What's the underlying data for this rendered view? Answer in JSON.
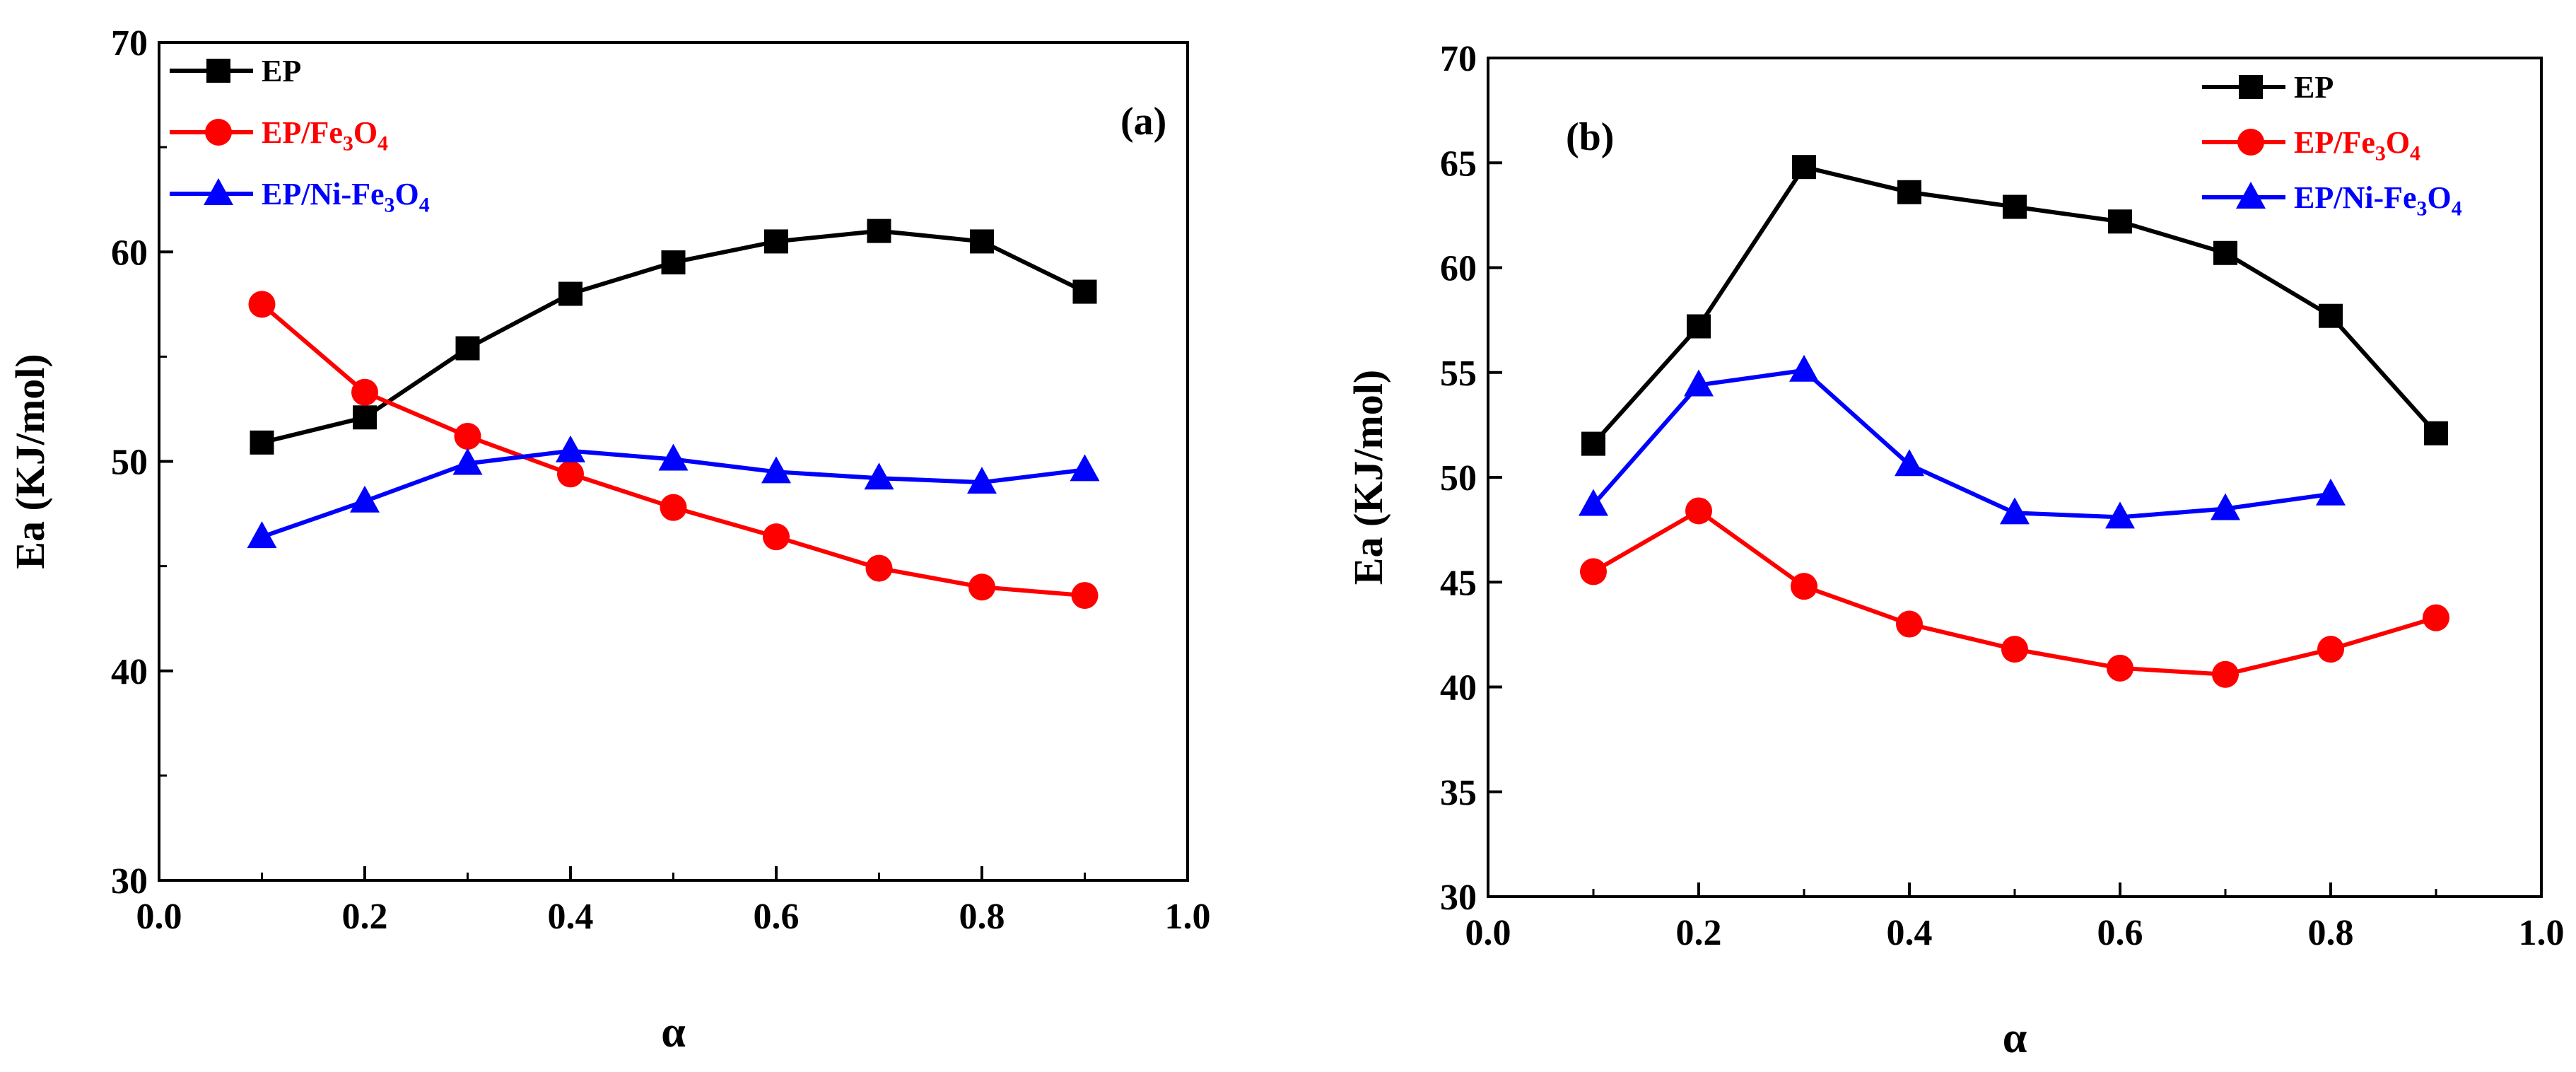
{
  "chart_data": [
    {
      "type": "line",
      "panel_label": "(a)",
      "title": "",
      "xlabel": "α",
      "ylabel": "Ea (KJ/mol)",
      "xlim": [
        0.0,
        1.0
      ],
      "ylim": [
        30,
        70
      ],
      "x_ticks": [
        "0.0",
        "0.2",
        "0.4",
        "0.6",
        "0.8",
        "1.0"
      ],
      "y_ticks": [
        "30",
        "40",
        "50",
        "60",
        "70"
      ],
      "x_tick_values": [
        0.0,
        0.2,
        0.4,
        0.6,
        0.8,
        1.0
      ],
      "y_tick_values": [
        30,
        40,
        50,
        60,
        70
      ],
      "x_minor_step": 0.1,
      "y_minor_step": 5,
      "legend_position": "top-left",
      "series": [
        {
          "name": "EP",
          "name_parts": [
            "EP"
          ],
          "name_sub": [],
          "marker": "square",
          "color": "#000000",
          "x": [
            0.1,
            0.2,
            0.3,
            0.4,
            0.5,
            0.6,
            0.7,
            0.8,
            0.9
          ],
          "y": [
            50.9,
            52.1,
            55.4,
            58.0,
            59.5,
            60.5,
            61.0,
            60.5,
            58.1
          ]
        },
        {
          "name": "EP/Fe3O4",
          "name_parts": [
            "EP/Fe",
            "3",
            "O",
            "4"
          ],
          "name_sub": [
            1,
            3
          ],
          "marker": "circle",
          "color": "#ff0000",
          "x": [
            0.1,
            0.2,
            0.3,
            0.4,
            0.5,
            0.6,
            0.7,
            0.8,
            0.9
          ],
          "y": [
            57.5,
            53.3,
            51.2,
            49.4,
            47.8,
            46.4,
            44.9,
            44.0,
            43.6
          ]
        },
        {
          "name": "EP/Ni-Fe3O4",
          "name_parts": [
            "EP/Ni-Fe",
            "3",
            "O",
            "4"
          ],
          "name_sub": [
            1,
            3
          ],
          "marker": "triangle",
          "color": "#0000ff",
          "x": [
            0.1,
            0.2,
            0.3,
            0.4,
            0.5,
            0.6,
            0.7,
            0.8,
            0.9
          ],
          "y": [
            46.4,
            48.1,
            49.9,
            50.5,
            50.1,
            49.5,
            49.2,
            49.0,
            49.6
          ]
        }
      ]
    },
    {
      "type": "line",
      "panel_label": "(b)",
      "title": "",
      "xlabel": "α",
      "ylabel": "Ea (KJ/mol)",
      "xlim": [
        0.0,
        1.0
      ],
      "ylim": [
        30,
        70
      ],
      "x_ticks": [
        "0.0",
        "0.2",
        "0.4",
        "0.6",
        "0.8",
        "1.0"
      ],
      "y_ticks": [
        "30",
        "35",
        "40",
        "45",
        "50",
        "55",
        "60",
        "65",
        "70"
      ],
      "x_tick_values": [
        0.0,
        0.2,
        0.4,
        0.6,
        0.8,
        1.0
      ],
      "y_tick_values": [
        30,
        35,
        40,
        45,
        50,
        55,
        60,
        65,
        70
      ],
      "x_minor_step": 0.1,
      "y_minor_step": 0,
      "legend_position": "top-right",
      "series": [
        {
          "name": "EP",
          "name_parts": [
            "EP"
          ],
          "name_sub": [],
          "marker": "square",
          "color": "#000000",
          "x": [
            0.1,
            0.2,
            0.3,
            0.4,
            0.5,
            0.6,
            0.7,
            0.8,
            0.9
          ],
          "y": [
            51.6,
            57.2,
            64.8,
            63.6,
            62.9,
            62.2,
            60.7,
            57.7,
            52.1
          ]
        },
        {
          "name": "EP/Fe3O4",
          "name_parts": [
            "EP/Fe",
            "3",
            "O",
            "4"
          ],
          "name_sub": [
            1,
            3
          ],
          "marker": "circle",
          "color": "#ff0000",
          "x": [
            0.1,
            0.2,
            0.3,
            0.4,
            0.5,
            0.6,
            0.7,
            0.8,
            0.9
          ],
          "y": [
            45.5,
            48.4,
            44.8,
            43.0,
            41.8,
            40.9,
            40.6,
            41.8,
            43.3
          ]
        },
        {
          "name": "EP/Ni-Fe3O4",
          "name_parts": [
            "EP/Ni-Fe",
            "3",
            "O",
            "4"
          ],
          "name_sub": [
            1,
            3
          ],
          "marker": "triangle",
          "color": "#0000ff",
          "x": [
            0.1,
            0.2,
            0.3,
            0.4,
            0.5,
            0.6,
            0.7,
            0.8
          ],
          "y": [
            48.7,
            54.4,
            55.1,
            50.6,
            48.3,
            48.1,
            48.5,
            49.2
          ]
        }
      ]
    }
  ]
}
